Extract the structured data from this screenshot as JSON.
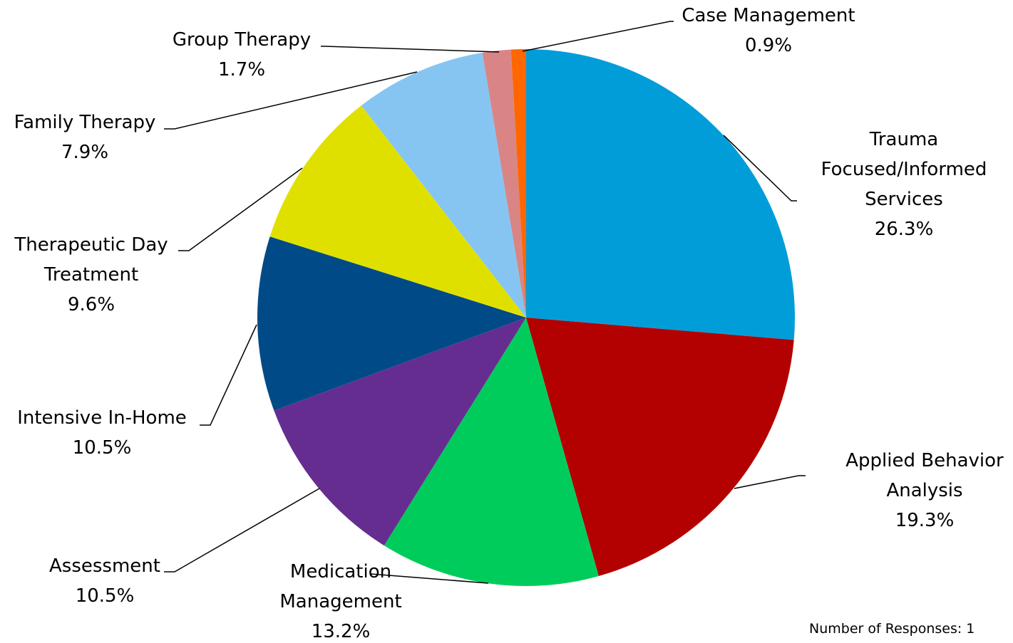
{
  "chart_data": {
    "type": "pie",
    "categories": [
      "Trauma Focused/Informed Services",
      "Applied Behavior Analysis",
      "Medication Management",
      "Assessment",
      "Intensive In-Home",
      "Therapeutic Day Treatment",
      "Family Therapy",
      "Group Therapy",
      "Case Management"
    ],
    "values": [
      26.3,
      19.3,
      13.2,
      10.5,
      10.5,
      9.6,
      7.9,
      1.7,
      0.9
    ],
    "value_labels": [
      "26.3%",
      "19.3%",
      "13.2%",
      "10.5%",
      "10.5%",
      "9.6%",
      "7.9%",
      "1.7%",
      "0.9%"
    ],
    "colors": [
      "#009dd9",
      "#b30000",
      "#00cc5c",
      "#662d91",
      "#004b87",
      "#e0e000",
      "#86c5f2",
      "#d98585",
      "#ff6600"
    ],
    "note": "Number of Responses: 1"
  }
}
